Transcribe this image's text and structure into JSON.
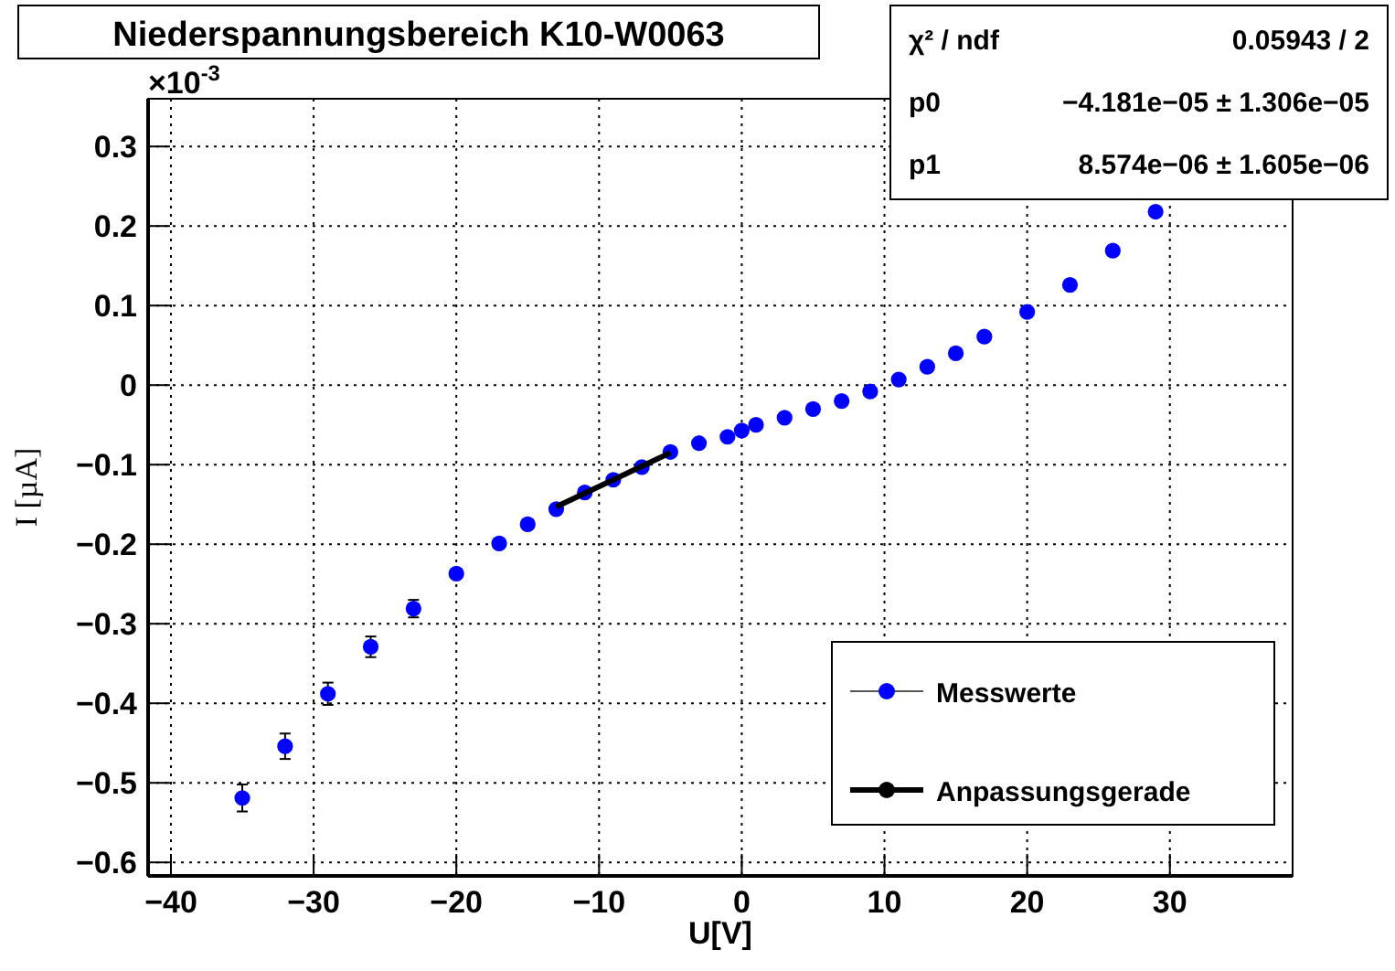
{
  "chart_data": {
    "type": "scatter",
    "title": "Niederspannungsbereich K10-W0063",
    "xlabel": "U[V]",
    "ylabel": "I [µA]",
    "annotations": [
      "×10$^{-3}$",
      "χ² / ndf",
      "0.05943 / 2",
      "p0",
      "−4.181e−05 ± 1.306e−05",
      "p1",
      "8.574e−06 ± 1.605e−06"
    ],
    "xlim": [
      -41.6,
      38.6
    ],
    "xticks": [
      {
        "value": -40,
        "label": "−40"
      },
      {
        "value": -30,
        "label": "−30"
      },
      {
        "value": -20,
        "label": "−20"
      },
      {
        "value": -10,
        "label": "−10"
      },
      0,
      10,
      20,
      30
    ],
    "ylim": [
      -0.617,
      0.36
    ],
    "yticks": [
      {
        "value": -0.6,
        "label": "−0.6"
      },
      {
        "value": -0.5,
        "label": "−0.5"
      },
      {
        "value": -0.4,
        "label": "−0.4"
      },
      {
        "value": -0.3,
        "label": "−0.3"
      },
      {
        "value": -0.2,
        "label": "−0.2"
      },
      {
        "value": -0.1,
        "label": "−0.1"
      },
      0,
      0.1,
      0.2,
      0.3
    ],
    "grid": true,
    "legend": "bottom right",
    "marker": "circle",
    "series": [
      {
        "name": "Messwerte",
        "color": "#0000ff",
        "x": [
          -35,
          -32,
          -29,
          -26,
          -23,
          -20,
          -17,
          -15,
          -13,
          -11,
          -9,
          -7,
          -5,
          -3,
          -1,
          0,
          1,
          3,
          5,
          7,
          9,
          11,
          13,
          15,
          17,
          20,
          23,
          26,
          29
        ],
        "values": [
          -0.519,
          -0.454,
          -0.388,
          -0.329,
          -0.281,
          -0.237,
          -0.199,
          -0.175,
          -0.156,
          -0.135,
          -0.119,
          -0.103,
          -0.084,
          -0.073,
          -0.065,
          -0.057,
          -0.05,
          -0.041,
          -0.03,
          -0.02,
          -0.008,
          0.007,
          0.023,
          0.04,
          0.061,
          0.092,
          0.126,
          0.169,
          0.218
        ],
        "errors": [
          0.017,
          0.016,
          0.014,
          0.013,
          0.011,
          null,
          null,
          null,
          null,
          null,
          null,
          null,
          null,
          null,
          null,
          null,
          null,
          null,
          null,
          null,
          null,
          null,
          null,
          null,
          null,
          null,
          null,
          null,
          null
        ]
      },
      {
        "name": "Anpassungsgerade",
        "type": "line",
        "marker": "none",
        "color": "#000000",
        "x": [
          -13,
          -5
        ],
        "values": [
          -0.153,
          -0.085
        ]
      }
    ]
  }
}
